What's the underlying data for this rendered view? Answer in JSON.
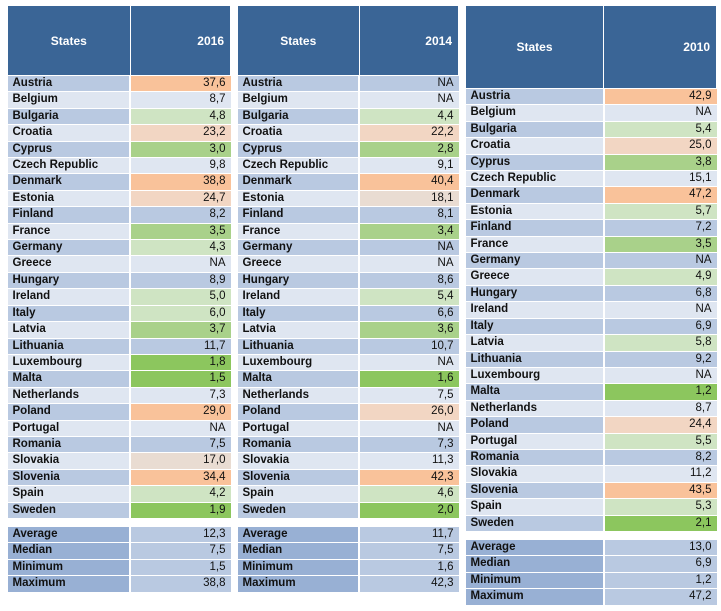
{
  "tables": [
    {
      "header": {
        "states": "States",
        "year": "2016"
      },
      "rows": [
        {
          "state": "Austria",
          "value": "37,6",
          "shade": "red"
        },
        {
          "state": "Belgium",
          "value": "8,7",
          "shade": ""
        },
        {
          "state": "Bulgaria",
          "value": "4,8",
          "shade": "lgreen"
        },
        {
          "state": "Croatia",
          "value": "23,2",
          "shade": "salmon"
        },
        {
          "state": "Cyprus",
          "value": "3,0",
          "shade": "green"
        },
        {
          "state": "Czech Republic",
          "value": "9,8",
          "shade": ""
        },
        {
          "state": "Denmark",
          "value": "38,8",
          "shade": "red"
        },
        {
          "state": "Estonia",
          "value": "24,7",
          "shade": "salmon"
        },
        {
          "state": "Finland",
          "value": "8,2",
          "shade": ""
        },
        {
          "state": "France",
          "value": "3,5",
          "shade": "green"
        },
        {
          "state": "Germany",
          "value": "4,3",
          "shade": "lgreen"
        },
        {
          "state": "Greece",
          "value": "NA",
          "shade": ""
        },
        {
          "state": "Hungary",
          "value": "8,9",
          "shade": ""
        },
        {
          "state": "Ireland",
          "value": "5,0",
          "shade": "lgreen"
        },
        {
          "state": "Italy",
          "value": "6,0",
          "shade": "lgreen"
        },
        {
          "state": "Latvia",
          "value": "3,7",
          "shade": "green"
        },
        {
          "state": "Lithuania",
          "value": "11,7",
          "shade": ""
        },
        {
          "state": "Luxembourg",
          "value": "1,8",
          "shade": "dgreen"
        },
        {
          "state": "Malta",
          "value": "1,5",
          "shade": "dgreen"
        },
        {
          "state": "Netherlands",
          "value": "7,3",
          "shade": ""
        },
        {
          "state": "Poland",
          "value": "29,0",
          "shade": "red"
        },
        {
          "state": "Portugal",
          "value": "NA",
          "shade": ""
        },
        {
          "state": "Romania",
          "value": "7,5",
          "shade": ""
        },
        {
          "state": "Slovakia",
          "value": "17,0",
          "shade": "blush"
        },
        {
          "state": "Slovenia",
          "value": "34,4",
          "shade": "red"
        },
        {
          "state": "Spain",
          "value": "4,2",
          "shade": "lgreen"
        },
        {
          "state": "Sweden",
          "value": "1,9",
          "shade": "dgreen"
        }
      ],
      "stats": [
        {
          "label": "Average",
          "value": "12,3"
        },
        {
          "label": "Median",
          "value": "7,5"
        },
        {
          "label": "Minimum",
          "value": "1,5"
        },
        {
          "label": "Maximum",
          "value": "38,8"
        }
      ]
    },
    {
      "header": {
        "states": "States",
        "year": "2014"
      },
      "rows": [
        {
          "state": "Austria",
          "value": "NA",
          "shade": ""
        },
        {
          "state": "Belgium",
          "value": "NA",
          "shade": ""
        },
        {
          "state": "Bulgaria",
          "value": "4,4",
          "shade": "lgreen"
        },
        {
          "state": "Croatia",
          "value": "22,2",
          "shade": "salmon"
        },
        {
          "state": "Cyprus",
          "value": "2,8",
          "shade": "green"
        },
        {
          "state": "Czech Republic",
          "value": "9,1",
          "shade": ""
        },
        {
          "state": "Denmark",
          "value": "40,4",
          "shade": "red"
        },
        {
          "state": "Estonia",
          "value": "18,1",
          "shade": "blush"
        },
        {
          "state": "Finland",
          "value": "8,1",
          "shade": ""
        },
        {
          "state": "France",
          "value": "3,4",
          "shade": "green"
        },
        {
          "state": "Germany",
          "value": "NA",
          "shade": ""
        },
        {
          "state": "Greece",
          "value": "NA",
          "shade": ""
        },
        {
          "state": "Hungary",
          "value": "8,6",
          "shade": ""
        },
        {
          "state": "Ireland",
          "value": "5,4",
          "shade": "lgreen"
        },
        {
          "state": "Italy",
          "value": "6,6",
          "shade": ""
        },
        {
          "state": "Latvia",
          "value": "3,6",
          "shade": "green"
        },
        {
          "state": "Lithuania",
          "value": "10,7",
          "shade": ""
        },
        {
          "state": "Luxembourg",
          "value": "NA",
          "shade": ""
        },
        {
          "state": "Malta",
          "value": "1,6",
          "shade": "dgreen"
        },
        {
          "state": "Netherlands",
          "value": "7,5",
          "shade": ""
        },
        {
          "state": "Poland",
          "value": "26,0",
          "shade": "salmon"
        },
        {
          "state": "Portugal",
          "value": "NA",
          "shade": ""
        },
        {
          "state": "Romania",
          "value": "7,3",
          "shade": ""
        },
        {
          "state": "Slovakia",
          "value": "11,3",
          "shade": ""
        },
        {
          "state": "Slovenia",
          "value": "42,3",
          "shade": "red"
        },
        {
          "state": "Spain",
          "value": "4,6",
          "shade": "lgreen"
        },
        {
          "state": "Sweden",
          "value": "2,0",
          "shade": "dgreen"
        }
      ],
      "stats": [
        {
          "label": "Average",
          "value": "11,7"
        },
        {
          "label": "Median",
          "value": "7,5"
        },
        {
          "label": "Minimum",
          "value": "1,6"
        },
        {
          "label": "Maximum",
          "value": "42,3"
        }
      ]
    },
    {
      "header": {
        "states": "States",
        "year": "2010"
      },
      "rows": [
        {
          "state": "Austria",
          "value": "42,9",
          "shade": "red"
        },
        {
          "state": "Belgium",
          "value": "NA",
          "shade": ""
        },
        {
          "state": "Bulgaria",
          "value": "5,4",
          "shade": "lgreen"
        },
        {
          "state": "Croatia",
          "value": "25,0",
          "shade": "salmon"
        },
        {
          "state": "Cyprus",
          "value": "3,8",
          "shade": "green"
        },
        {
          "state": "Czech Republic",
          "value": "15,1",
          "shade": ""
        },
        {
          "state": "Denmark",
          "value": "47,2",
          "shade": "red"
        },
        {
          "state": "Estonia",
          "value": "5,7",
          "shade": "lgreen"
        },
        {
          "state": "Finland",
          "value": "7,2",
          "shade": ""
        },
        {
          "state": "France",
          "value": "3,5",
          "shade": "green"
        },
        {
          "state": "Germany",
          "value": "NA",
          "shade": ""
        },
        {
          "state": "Greece",
          "value": "4,9",
          "shade": "lgreen"
        },
        {
          "state": "Hungary",
          "value": "6,8",
          "shade": ""
        },
        {
          "state": "Ireland",
          "value": "NA",
          "shade": ""
        },
        {
          "state": "Italy",
          "value": "6,9",
          "shade": ""
        },
        {
          "state": "Latvia",
          "value": "5,8",
          "shade": "lgreen"
        },
        {
          "state": "Lithuania",
          "value": "9,2",
          "shade": ""
        },
        {
          "state": "Luxembourg",
          "value": "NA",
          "shade": ""
        },
        {
          "state": "Malta",
          "value": "1,2",
          "shade": "dgreen"
        },
        {
          "state": "Netherlands",
          "value": "8,7",
          "shade": ""
        },
        {
          "state": "Poland",
          "value": "24,4",
          "shade": "salmon"
        },
        {
          "state": "Portugal",
          "value": "5,5",
          "shade": "lgreen"
        },
        {
          "state": "Romania",
          "value": "8,2",
          "shade": ""
        },
        {
          "state": "Slovakia",
          "value": "11,2",
          "shade": ""
        },
        {
          "state": "Slovenia",
          "value": "43,5",
          "shade": "red"
        },
        {
          "state": "Spain",
          "value": "5,3",
          "shade": "lgreen"
        },
        {
          "state": "Sweden",
          "value": "2,1",
          "shade": "dgreen"
        }
      ],
      "stats": [
        {
          "label": "Average",
          "value": "13,0"
        },
        {
          "label": "Median",
          "value": "6,9"
        },
        {
          "label": "Minimum",
          "value": "1,2"
        },
        {
          "label": "Maximum",
          "value": "47,2"
        }
      ]
    }
  ]
}
